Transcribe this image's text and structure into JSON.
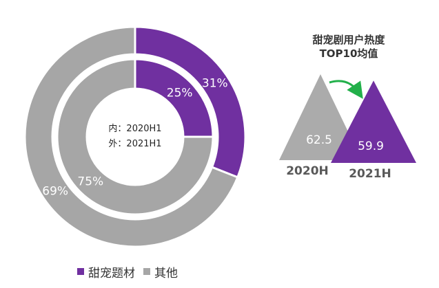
{
  "colors": {
    "theme": "#7030A0",
    "other": "#A6A6A6",
    "arrow": "#22B04A"
  },
  "chart_data": [
    {
      "type": "pie",
      "subtype": "donut",
      "center_text": [
        "内：2020H1",
        "外：2021H1"
      ],
      "rings": [
        {
          "name": "2020H1",
          "position": "inner",
          "slices": [
            {
              "label": "甜宠题材",
              "value": 25,
              "display": "25%"
            },
            {
              "label": "其他",
              "value": 75,
              "display": "75%"
            }
          ]
        },
        {
          "name": "2021H1",
          "position": "outer",
          "slices": [
            {
              "label": "甜宠题材",
              "value": 31,
              "display": "31%"
            },
            {
              "label": "其他",
              "value": 69,
              "display": "69%"
            }
          ]
        }
      ],
      "legend": [
        {
          "label": "甜宠题材",
          "color": "#7030A0"
        },
        {
          "label": "其他",
          "color": "#A6A6A6"
        }
      ],
      "legend_position": "bottom-left"
    },
    {
      "type": "bar",
      "subtype": "triangle",
      "title": [
        "甜宠剧用户热度",
        "TOP10均值"
      ],
      "categories": [
        "2020H",
        "2021H"
      ],
      "values": [
        62.5,
        59.9
      ],
      "value_labels": [
        "62.5",
        "59.9"
      ],
      "colors": [
        "#A6A6A6",
        "#7030A0"
      ]
    }
  ]
}
